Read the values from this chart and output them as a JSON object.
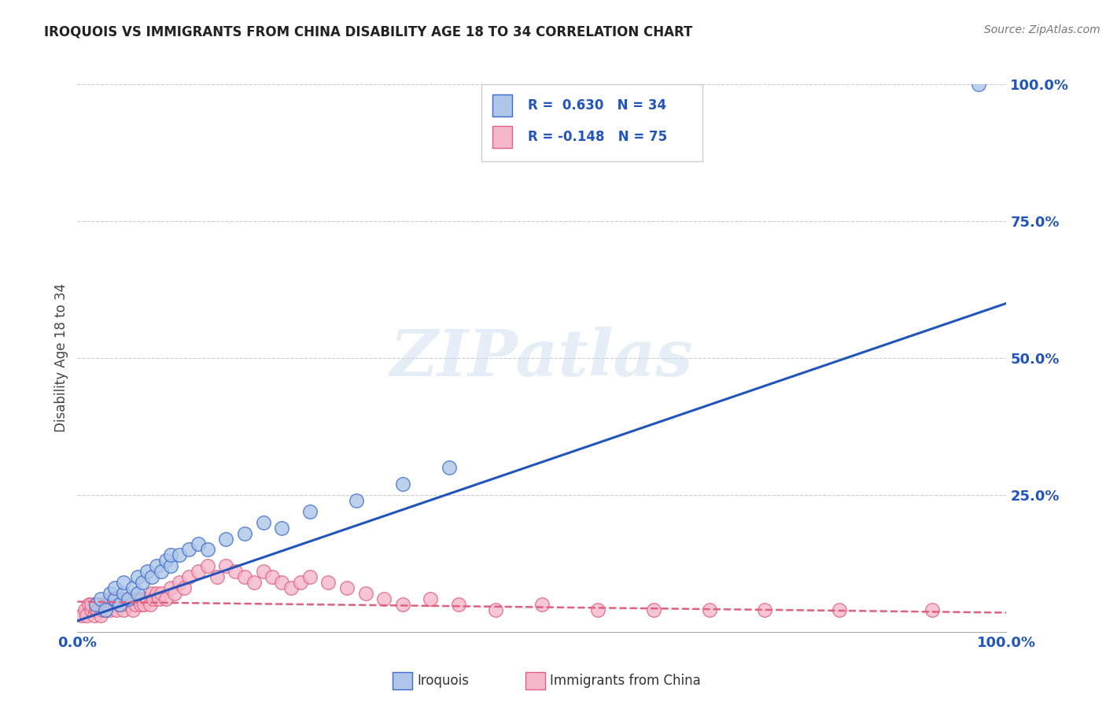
{
  "title": "IROQUOIS VS IMMIGRANTS FROM CHINA DISABILITY AGE 18 TO 34 CORRELATION CHART",
  "source": "Source: ZipAtlas.com",
  "ylabel": "Disability Age 18 to 34",
  "xlim": [
    0,
    1.0
  ],
  "ylim": [
    0,
    1.0
  ],
  "ytick_positions": [
    0.25,
    0.5,
    0.75,
    1.0
  ],
  "ytick_labels": [
    "25.0%",
    "50.0%",
    "75.0%",
    "100.0%"
  ],
  "xtick_positions": [
    0.0,
    1.0
  ],
  "xtick_labels": [
    "0.0%",
    "100.0%"
  ],
  "watermark_text": "ZIPatlas",
  "iroquois_color": "#aec6e8",
  "immigrants_color": "#f5b8cb",
  "iroquois_edge_color": "#3a6bcc",
  "immigrants_edge_color": "#e06080",
  "iroquois_line_color": "#2255bb",
  "immigrants_line_color": "#e06080",
  "iroquois_R": 0.63,
  "immigrants_R": -0.148,
  "iroquois_N": 34,
  "immigrants_N": 75,
  "iroquois_points_x": [
    0.02,
    0.025,
    0.03,
    0.035,
    0.04,
    0.04,
    0.045,
    0.05,
    0.05,
    0.055,
    0.06,
    0.065,
    0.065,
    0.07,
    0.075,
    0.08,
    0.085,
    0.09,
    0.095,
    0.1,
    0.1,
    0.11,
    0.12,
    0.13,
    0.14,
    0.16,
    0.18,
    0.2,
    0.22,
    0.25,
    0.3,
    0.35,
    0.4,
    0.97
  ],
  "iroquois_points_y": [
    0.05,
    0.06,
    0.04,
    0.07,
    0.06,
    0.08,
    0.05,
    0.07,
    0.09,
    0.06,
    0.08,
    0.07,
    0.1,
    0.09,
    0.11,
    0.1,
    0.12,
    0.11,
    0.13,
    0.12,
    0.14,
    0.14,
    0.15,
    0.16,
    0.15,
    0.17,
    0.18,
    0.2,
    0.19,
    0.22,
    0.24,
    0.27,
    0.3,
    1.0
  ],
  "immigrants_points_x": [
    0.005,
    0.008,
    0.01,
    0.012,
    0.015,
    0.015,
    0.018,
    0.02,
    0.02,
    0.022,
    0.025,
    0.025,
    0.028,
    0.03,
    0.03,
    0.032,
    0.035,
    0.035,
    0.038,
    0.04,
    0.04,
    0.042,
    0.045,
    0.048,
    0.05,
    0.05,
    0.055,
    0.058,
    0.06,
    0.062,
    0.065,
    0.068,
    0.07,
    0.072,
    0.075,
    0.078,
    0.08,
    0.082,
    0.085,
    0.088,
    0.09,
    0.095,
    0.1,
    0.105,
    0.11,
    0.115,
    0.12,
    0.13,
    0.14,
    0.15,
    0.16,
    0.17,
    0.18,
    0.19,
    0.2,
    0.21,
    0.22,
    0.23,
    0.24,
    0.25,
    0.27,
    0.29,
    0.31,
    0.33,
    0.35,
    0.38,
    0.41,
    0.45,
    0.5,
    0.56,
    0.62,
    0.68,
    0.74,
    0.82,
    0.92
  ],
  "immigrants_points_y": [
    0.03,
    0.04,
    0.03,
    0.05,
    0.04,
    0.05,
    0.03,
    0.04,
    0.05,
    0.04,
    0.05,
    0.03,
    0.04,
    0.05,
    0.04,
    0.05,
    0.06,
    0.04,
    0.05,
    0.05,
    0.06,
    0.04,
    0.05,
    0.05,
    0.06,
    0.04,
    0.05,
    0.06,
    0.04,
    0.05,
    0.06,
    0.05,
    0.06,
    0.05,
    0.06,
    0.05,
    0.07,
    0.06,
    0.07,
    0.06,
    0.07,
    0.06,
    0.08,
    0.07,
    0.09,
    0.08,
    0.1,
    0.11,
    0.12,
    0.1,
    0.12,
    0.11,
    0.1,
    0.09,
    0.11,
    0.1,
    0.09,
    0.08,
    0.09,
    0.1,
    0.09,
    0.08,
    0.07,
    0.06,
    0.05,
    0.06,
    0.05,
    0.04,
    0.05,
    0.04,
    0.04,
    0.04,
    0.04,
    0.04,
    0.04
  ],
  "blue_line_x0": 0.0,
  "blue_line_y0": 0.02,
  "blue_line_x1": 1.0,
  "blue_line_y1": 0.6,
  "pink_line_x0": 0.0,
  "pink_line_y0": 0.055,
  "pink_line_x1": 1.0,
  "pink_line_y1": 0.035
}
